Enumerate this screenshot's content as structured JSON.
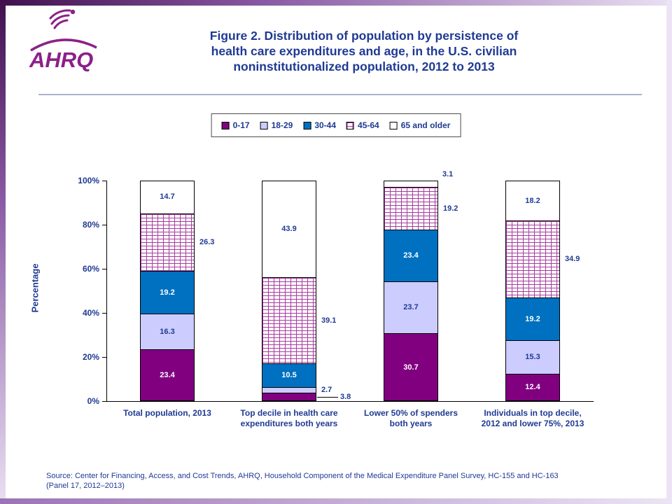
{
  "logo": {
    "text": "AHRQ"
  },
  "header": {
    "title_lines": [
      "Figure 2. Distribution of population by persistence of",
      "health care expenditures and age, in the U.S. civilian",
      "noninstitutionalized population, 2012 to 2013"
    ]
  },
  "source_lines": [
    "Source: Center for Financing, Access, and Cost Trends, AHRQ, Household Component of the Medical Expenditure Panel Survey, HC-155 and HC-163",
    "(Panel 17, 2012–2013)"
  ],
  "colors": {
    "navy_text": "#1F3A93",
    "logo_purple": "#8B2189",
    "series_purple": "#800080",
    "series_lavender": "#CCCCFF",
    "series_blue": "#0070C0",
    "brick_pattern_line": "#A83AA0",
    "axis_black": "#000000"
  },
  "chart_data": {
    "type": "bar",
    "stacked": true,
    "grid": false,
    "legend_position": "top",
    "title": "Figure 2. Distribution of population by persistence of health care expenditures and age, in the U.S. civilian noninstitutionalized population, 2012 to 2013",
    "xlabel": "",
    "ylabel": "Percentage",
    "ylim": [
      0,
      100
    ],
    "ytick_labels": [
      "0%",
      "20%",
      "40%",
      "60%",
      "80%",
      "100%"
    ],
    "categories": [
      "Total population, 2013",
      "Top decile in health care expenditures both years",
      "Lower 50% of spenders both years",
      "Individuals in top decile, 2012 and lower 75%, 2013"
    ],
    "category_lines": [
      [
        "Total population, 2013"
      ],
      [
        "Top decile in health care",
        "expenditures both years"
      ],
      [
        "Lower 50% of spenders",
        "both years"
      ],
      [
        "Individuals in top decile,",
        "2012 and lower 75%, 2013"
      ]
    ],
    "series": [
      {
        "name": "0-17",
        "color": "#800080",
        "text_color": "#FFFFFF",
        "values": [
          23.4,
          3.8,
          30.7,
          12.4
        ]
      },
      {
        "name": "18-29",
        "color": "#CCCCFF",
        "text_color": "#1F3A93",
        "values": [
          16.3,
          2.7,
          23.7,
          15.3
        ]
      },
      {
        "name": "30-44",
        "color": "#0070C0",
        "text_color": "#FFFFFF",
        "values": [
          19.2,
          10.5,
          23.4,
          19.2
        ]
      },
      {
        "name": "45-64",
        "color": "#FFFFFF",
        "pattern": "brick",
        "pattern_color": "#A83AA0",
        "text_color": "#1F3A93",
        "values": [
          26.3,
          39.1,
          19.2,
          34.9
        ]
      },
      {
        "name": "65 and older",
        "color": "#FFFFFF",
        "text_color": "#1F3A93",
        "values": [
          14.7,
          43.9,
          3.1,
          18.2
        ]
      }
    ]
  }
}
